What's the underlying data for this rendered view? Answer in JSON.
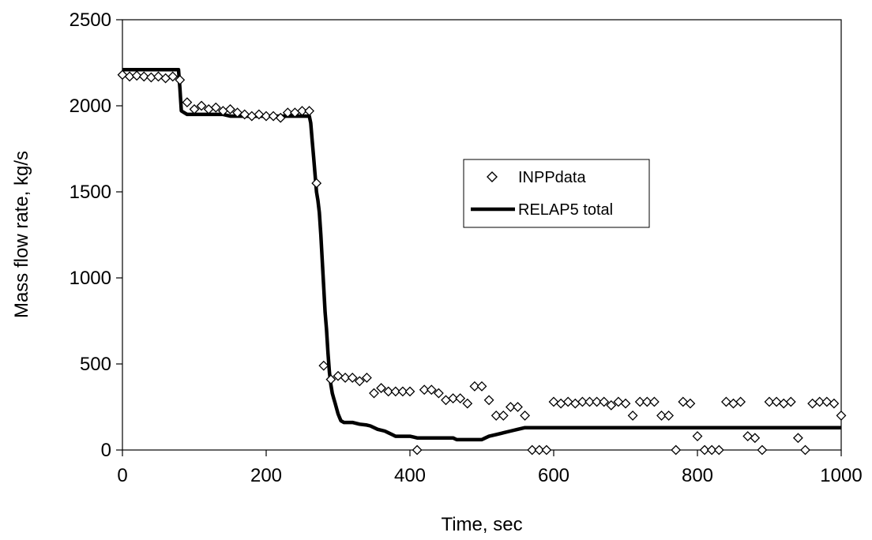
{
  "chart_data": {
    "type": "scatter",
    "title": "",
    "xlabel": "Time, sec",
    "ylabel": "Mass flow rate, kg/s",
    "xlim": [
      0,
      1000
    ],
    "ylim": [
      0,
      2500
    ],
    "xticks": [
      0,
      200,
      400,
      600,
      800,
      1000
    ],
    "yticks": [
      0,
      500,
      1000,
      1500,
      2000,
      2500
    ],
    "grid": false,
    "legend_position": "center-right",
    "series": [
      {
        "name": "INPPdata",
        "kind": "markers",
        "marker": "diamond",
        "color": "#000000",
        "x": [
          0,
          10,
          20,
          30,
          40,
          50,
          60,
          70,
          80,
          90,
          100,
          110,
          120,
          130,
          140,
          150,
          160,
          170,
          180,
          190,
          200,
          210,
          220,
          230,
          240,
          250,
          260,
          270,
          280,
          290,
          300,
          310,
          320,
          330,
          340,
          350,
          360,
          370,
          380,
          390,
          400,
          410,
          420,
          430,
          440,
          450,
          460,
          470,
          480,
          490,
          500,
          510,
          520,
          530,
          540,
          550,
          560,
          570,
          580,
          590,
          600,
          610,
          620,
          630,
          640,
          650,
          660,
          670,
          680,
          690,
          700,
          710,
          720,
          730,
          740,
          750,
          760,
          770,
          780,
          790,
          800,
          810,
          820,
          830,
          840,
          850,
          860,
          870,
          880,
          890,
          900,
          910,
          920,
          930,
          940,
          950,
          960,
          970,
          980,
          990,
          1000
        ],
        "y": [
          2180,
          2170,
          2175,
          2170,
          2165,
          2170,
          2160,
          2170,
          2150,
          2020,
          1980,
          2000,
          1980,
          1990,
          1970,
          1980,
          1960,
          1950,
          1940,
          1950,
          1940,
          1940,
          1930,
          1960,
          1960,
          1970,
          1970,
          1550,
          490,
          410,
          430,
          420,
          420,
          400,
          420,
          330,
          360,
          340,
          340,
          340,
          340,
          0,
          350,
          350,
          330,
          290,
          300,
          300,
          270,
          370,
          370,
          290,
          200,
          200,
          250,
          250,
          200,
          0,
          0,
          0,
          280,
          270,
          280,
          270,
          280,
          280,
          280,
          280,
          260,
          280,
          270,
          200,
          280,
          280,
          280,
          200,
          200,
          0,
          280,
          270,
          80,
          0,
          0,
          0,
          280,
          270,
          280,
          80,
          70,
          0,
          280,
          280,
          270,
          280,
          70,
          0,
          270,
          280,
          280,
          270,
          200
        ]
      },
      {
        "name": "RELAP5 total",
        "kind": "line",
        "color": "#000000",
        "x": [
          0,
          78,
          80,
          82,
          90,
          100,
          140,
          150,
          260,
          262,
          264,
          266,
          268,
          270,
          272,
          274,
          276,
          278,
          280,
          282,
          284,
          286,
          288,
          290,
          292,
          294,
          296,
          298,
          300,
          302,
          304,
          306,
          308,
          310,
          320,
          330,
          340,
          345,
          355,
          365,
          370,
          375,
          380,
          400,
          405,
          410,
          440,
          460,
          465,
          500,
          505,
          510,
          520,
          530,
          540,
          550,
          560,
          1000
        ],
        "y": [
          2210,
          2210,
          2100,
          1970,
          1950,
          1950,
          1950,
          1940,
          1940,
          1900,
          1800,
          1700,
          1600,
          1500,
          1450,
          1380,
          1250,
          1100,
          950,
          800,
          700,
          560,
          450,
          380,
          330,
          300,
          270,
          240,
          210,
          190,
          170,
          165,
          160,
          160,
          160,
          150,
          145,
          140,
          120,
          110,
          100,
          90,
          80,
          80,
          75,
          70,
          70,
          70,
          60,
          60,
          70,
          80,
          90,
          100,
          110,
          120,
          130,
          130
        ]
      }
    ]
  }
}
